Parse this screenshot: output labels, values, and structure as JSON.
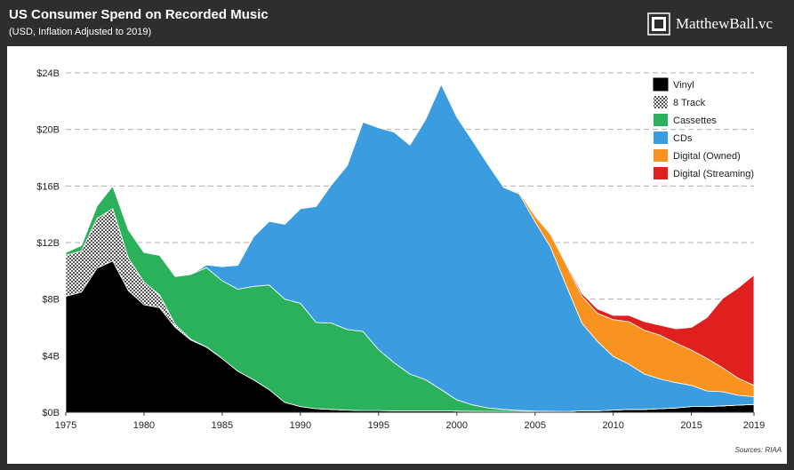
{
  "header": {
    "title": "US Consumer Spend on Recorded Music",
    "subtitle": "(USD, Inflation Adjusted to 2019)",
    "brand": "MatthewBall.vc"
  },
  "source_note": "Sources: RIAA",
  "colors": {
    "vinyl": "#000000",
    "eight_track": "#8a8a8a",
    "cassettes": "#2bb05c",
    "cds": "#3b9ce0",
    "digital_owned": "#f7931e",
    "digital_streaming": "#e0201f",
    "header_bg": "#2e2e2e",
    "grid": "#b0b0b0"
  },
  "chart_data": {
    "type": "area",
    "stacked": true,
    "title": "US Consumer Spend on Recorded Music",
    "subtitle": "(USD, Inflation Adjusted to 2019)",
    "xlabel": "",
    "ylabel": "",
    "ylim": [
      0,
      24
    ],
    "xlim": [
      1975,
      2019
    ],
    "y_ticks": [
      {
        "value": 0,
        "label": "$0B"
      },
      {
        "value": 4,
        "label": "$4B"
      },
      {
        "value": 8,
        "label": "$8B"
      },
      {
        "value": 12,
        "label": "$12B"
      },
      {
        "value": 16,
        "label": "$16B"
      },
      {
        "value": 20,
        "label": "$20B"
      },
      {
        "value": 24,
        "label": "$24B"
      }
    ],
    "x_ticks": [
      {
        "value": 1975,
        "label": "1975"
      },
      {
        "value": 1980,
        "label": "1980"
      },
      {
        "value": 1985,
        "label": "1985"
      },
      {
        "value": 1990,
        "label": "1990"
      },
      {
        "value": 1995,
        "label": "1995"
      },
      {
        "value": 2000,
        "label": "2000"
      },
      {
        "value": 2005,
        "label": "2005"
      },
      {
        "value": 2010,
        "label": "2010"
      },
      {
        "value": 2015,
        "label": "2015"
      },
      {
        "value": 2019,
        "label": "2019"
      }
    ],
    "grid": "horizontal dashed",
    "legend_position": "top-right",
    "x": [
      1975,
      1976,
      1977,
      1978,
      1979,
      1980,
      1981,
      1982,
      1983,
      1984,
      1985,
      1986,
      1987,
      1988,
      1989,
      1990,
      1991,
      1992,
      1993,
      1994,
      1995,
      1996,
      1997,
      1998,
      1999,
      2000,
      2001,
      2002,
      2003,
      2004,
      2005,
      2006,
      2007,
      2008,
      2009,
      2010,
      2011,
      2012,
      2013,
      2014,
      2015,
      2016,
      2017,
      2018,
      2019
    ],
    "series": [
      {
        "name": "Vinyl",
        "key": "vinyl",
        "pattern": "solid",
        "values": [
          8.2,
          8.5,
          10.2,
          10.7,
          8.6,
          7.6,
          7.4,
          6.0,
          5.1,
          4.6,
          3.8,
          2.9,
          2.3,
          1.6,
          0.7,
          0.4,
          0.25,
          0.2,
          0.15,
          0.12,
          0.12,
          0.1,
          0.1,
          0.1,
          0.1,
          0.08,
          0.07,
          0.06,
          0.05,
          0.05,
          0.05,
          0.05,
          0.05,
          0.1,
          0.1,
          0.15,
          0.2,
          0.2,
          0.25,
          0.3,
          0.4,
          0.4,
          0.45,
          0.5,
          0.55
        ]
      },
      {
        "name": "8 Track",
        "key": "eight_track",
        "pattern": "checker",
        "values": [
          2.9,
          2.9,
          3.5,
          3.7,
          2.3,
          1.6,
          0.9,
          0.2,
          0.05,
          0.02,
          0,
          0,
          0,
          0,
          0,
          0,
          0,
          0,
          0,
          0,
          0,
          0,
          0,
          0,
          0,
          0,
          0,
          0,
          0,
          0,
          0,
          0,
          0,
          0,
          0,
          0,
          0,
          0,
          0,
          0,
          0,
          0,
          0,
          0,
          0
        ]
      },
      {
        "name": "Cassettes",
        "key": "cassettes",
        "pattern": "solid",
        "values": [
          0.2,
          0.4,
          0.9,
          1.6,
          2.0,
          2.1,
          2.8,
          3.4,
          4.6,
          5.6,
          5.5,
          5.8,
          6.6,
          7.4,
          7.3,
          7.3,
          6.1,
          6.1,
          5.7,
          5.6,
          4.3,
          3.4,
          2.6,
          2.2,
          1.5,
          0.8,
          0.45,
          0.25,
          0.15,
          0.08,
          0.03,
          0.02,
          0,
          0,
          0,
          0,
          0,
          0,
          0,
          0,
          0,
          0,
          0,
          0,
          0
        ]
      },
      {
        "name": "CDs",
        "key": "cds",
        "pattern": "solid",
        "values": [
          0,
          0,
          0,
          0,
          0,
          0,
          0,
          0,
          0,
          0.2,
          1.0,
          1.7,
          3.5,
          4.5,
          5.3,
          6.7,
          8.2,
          9.8,
          11.6,
          14.8,
          15.7,
          16.3,
          16.2,
          18.4,
          21.6,
          20.0,
          18.7,
          17.2,
          15.7,
          15.3,
          13.4,
          11.6,
          8.9,
          6.2,
          4.9,
          3.8,
          3.2,
          2.5,
          2.1,
          1.8,
          1.5,
          1.1,
          1.0,
          0.7,
          0.55
        ]
      },
      {
        "name": "Digital (Owned)",
        "key": "digital_owned",
        "pattern": "solid",
        "values": [
          0,
          0,
          0,
          0,
          0,
          0,
          0,
          0,
          0,
          0,
          0,
          0,
          0,
          0,
          0,
          0,
          0,
          0,
          0,
          0,
          0,
          0,
          0,
          0,
          0,
          0,
          0,
          0,
          0,
          0.1,
          0.4,
          0.9,
          1.5,
          1.9,
          2.0,
          2.6,
          3.0,
          3.1,
          3.1,
          2.8,
          2.5,
          2.3,
          1.7,
          1.2,
          0.8
        ]
      },
      {
        "name": "Digital (Streaming)",
        "key": "digital_streaming",
        "pattern": "solid",
        "values": [
          0,
          0,
          0,
          0,
          0,
          0,
          0,
          0,
          0,
          0,
          0,
          0,
          0,
          0,
          0,
          0,
          0,
          0,
          0,
          0,
          0,
          0,
          0,
          0,
          0,
          0,
          0,
          0,
          0,
          0,
          0,
          0.05,
          0.1,
          0.2,
          0.3,
          0.3,
          0.45,
          0.6,
          0.7,
          1.0,
          1.6,
          2.9,
          4.9,
          6.4,
          7.8
        ]
      }
    ]
  }
}
